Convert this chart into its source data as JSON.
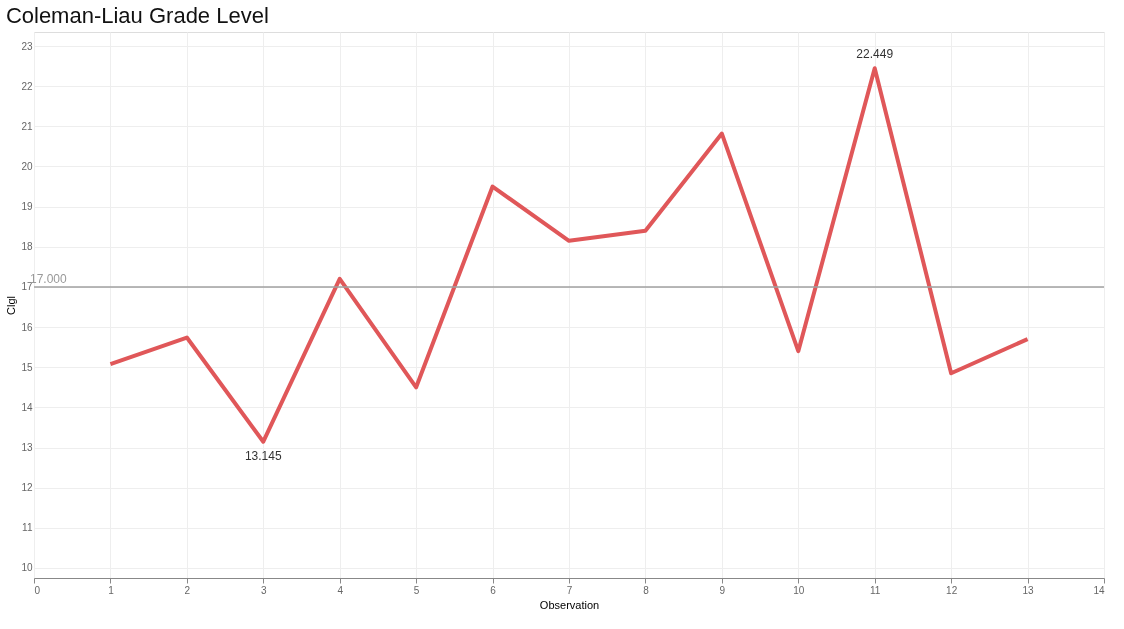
{
  "chart_data": {
    "type": "line",
    "title": "Coleman-Liau Grade Level",
    "xlabel": "Observation",
    "ylabel": "Clgl",
    "x": [
      1,
      2,
      3,
      4,
      5,
      6,
      7,
      8,
      9,
      10,
      11,
      12,
      13
    ],
    "series": [
      {
        "color": "#e05759",
        "values": [
          15.08,
          15.74,
          13.145,
          17.2,
          14.5,
          19.5,
          18.15,
          18.4,
          20.82,
          15.4,
          22.449,
          14.85,
          15.7
        ],
        "value_labels": [
          null,
          null,
          "13.145",
          null,
          null,
          null,
          null,
          null,
          null,
          null,
          "22.449",
          null,
          null
        ]
      }
    ],
    "xlim": [
      0,
      14
    ],
    "xticks": [
      0,
      1,
      2,
      3,
      4,
      5,
      6,
      7,
      8,
      9,
      10,
      11,
      12,
      13,
      14
    ],
    "ylim": [
      9.75,
      23.35
    ],
    "yticks": [
      10,
      11,
      12,
      13,
      14,
      15,
      16,
      17,
      18,
      19,
      20,
      21,
      22,
      23
    ],
    "ref_lines": [
      {
        "axis": "y",
        "value": 17,
        "label": "17.000",
        "color": "#a0a0a0"
      }
    ],
    "grid": true,
    "marker": "none",
    "line_style": "solid"
  }
}
